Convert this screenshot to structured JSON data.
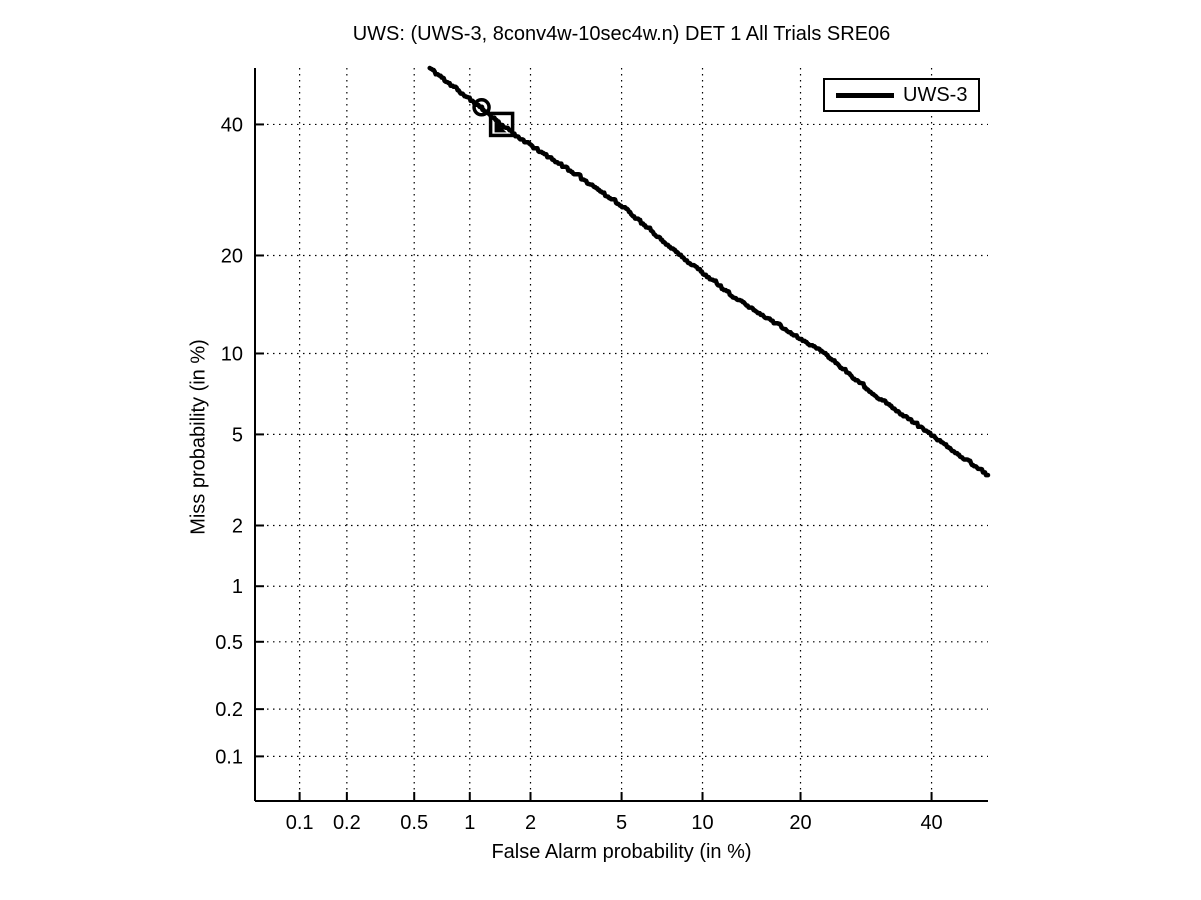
{
  "chart_data": {
    "type": "line",
    "subtype": "DET-curve",
    "title": "UWS: (UWS-3, 8conv4w-10sec4w.n) DET 1 All Trials SRE06",
    "xlabel": "False Alarm probability (in %)",
    "ylabel": "Miss probability (in %)",
    "axis_scale": "probit (normal deviate) on both axes",
    "xlim_percent": [
      0.05,
      50
    ],
    "ylim_percent": [
      0.05,
      50
    ],
    "xticks_percent": [
      0.1,
      0.2,
      0.5,
      1,
      2,
      5,
      10,
      20,
      40
    ],
    "yticks_percent": [
      0.1,
      0.2,
      0.5,
      1,
      2,
      5,
      10,
      20,
      40
    ],
    "xtick_labels": [
      "0.1",
      "0.2",
      "0.5",
      "1",
      "2",
      "5",
      "10",
      "20",
      "40"
    ],
    "ytick_labels": [
      "0.1",
      "0.2",
      "0.5",
      "1",
      "2",
      "5",
      "10",
      "20",
      "40"
    ],
    "grid": "dotted black at every labeled tick",
    "legend": {
      "position": "top-right",
      "entries": [
        "UWS-3"
      ]
    },
    "colors": {
      "curve": "#000000",
      "background": "#ffffff",
      "grid": "#000000"
    },
    "series": [
      {
        "name": "UWS-3",
        "color": "#000000",
        "line_width": 4.5,
        "points_fa_miss_percent": [
          [
            0.61,
            50.0
          ],
          [
            0.8,
            47.0
          ],
          [
            1.0,
            44.5
          ],
          [
            1.15,
            43.0
          ],
          [
            1.45,
            40.0
          ],
          [
            2.0,
            36.5
          ],
          [
            3.0,
            32.5
          ],
          [
            5.0,
            26.9
          ],
          [
            8.4,
            20.0
          ],
          [
            13.0,
            15.0
          ],
          [
            20.0,
            11.3
          ],
          [
            23.3,
            10.0
          ],
          [
            30.0,
            7.3
          ],
          [
            40.0,
            5.0
          ],
          [
            50.0,
            3.4
          ]
        ]
      }
    ],
    "markers": [
      {
        "shape": "circle-bullseye",
        "fa_percent": 1.15,
        "miss_percent": 43.0
      },
      {
        "shape": "square-outline-with-filled-triangle",
        "fa_percent": 1.45,
        "miss_percent": 40.0
      }
    ]
  }
}
